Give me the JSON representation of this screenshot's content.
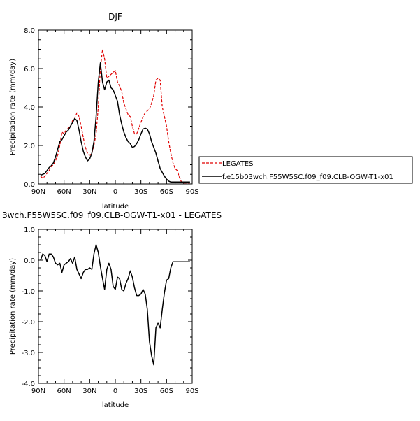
{
  "chart_data": [
    {
      "type": "line",
      "title": "DJF",
      "xlabel": "latitude",
      "ylabel": "Precipitation rate (mm/day)",
      "xlim": [
        90,
        -90
      ],
      "ylim": [
        0,
        8
      ],
      "xticks": [
        90,
        60,
        30,
        0,
        -30,
        -60,
        -90
      ],
      "xtick_labels": [
        "90N",
        "60N",
        "30N",
        "0",
        "30S",
        "60S",
        "90S"
      ],
      "yticks": [
        0,
        2,
        4,
        6,
        8
      ],
      "ytick_labels": [
        "0.0",
        "2.0",
        "4.0",
        "6.0",
        "8.0"
      ],
      "legend_placement": "right",
      "series": [
        {
          "name": "LEGATES",
          "style": "dashed",
          "color": "#e00000",
          "x": [
            87.5,
            85,
            82.5,
            80,
            77.5,
            75,
            72.5,
            70,
            67.5,
            65,
            62.5,
            60,
            57.5,
            55,
            52.5,
            50,
            47.5,
            45,
            42.5,
            40,
            37.5,
            35,
            32.5,
            30,
            27.5,
            25,
            22.5,
            20,
            17.5,
            15,
            12.5,
            10,
            7.5,
            5,
            2.5,
            0,
            -2.5,
            -5,
            -7.5,
            -10,
            -12.5,
            -15,
            -17.5,
            -20,
            -22.5,
            -25,
            -27.5,
            -30,
            -32.5,
            -35,
            -37.5,
            -40,
            -42.5,
            -45,
            -47.5,
            -50,
            -52.5,
            -55,
            -57.5,
            -60,
            -62.5,
            -65,
            -67.5,
            -70,
            -72.5,
            -75,
            -77.5,
            -80,
            -82.5,
            -85,
            -87.5
          ],
          "values": [
            0.4,
            0.3,
            0.4,
            0.55,
            0.7,
            0.9,
            1.0,
            1.2,
            1.5,
            2.0,
            2.7,
            2.6,
            2.8,
            2.9,
            3.0,
            3.3,
            3.4,
            3.7,
            3.5,
            3.0,
            2.4,
            1.9,
            1.6,
            1.5,
            1.6,
            2.0,
            2.6,
            4.0,
            6.0,
            7.0,
            6.5,
            5.5,
            5.6,
            5.7,
            5.8,
            5.9,
            5.3,
            5.1,
            4.8,
            4.2,
            3.9,
            3.6,
            3.5,
            3.0,
            2.6,
            2.6,
            2.9,
            3.2,
            3.5,
            3.7,
            3.8,
            3.9,
            4.2,
            4.6,
            5.4,
            5.5,
            5.4,
            4.0,
            3.5,
            3.0,
            2.2,
            1.6,
            1.1,
            0.8,
            0.7,
            0.35,
            0.1,
            0.05,
            0.05,
            0.05,
            0.05
          ]
        },
        {
          "name": "f.e15b03wch.F55W5SC.f09_f09.CLB-OGW-T1-x01",
          "style": "solid",
          "color": "#000000",
          "x": [
            87.5,
            85,
            82.5,
            80,
            77.5,
            75,
            72.5,
            70,
            67.5,
            65,
            62.5,
            60,
            57.5,
            55,
            52.5,
            50,
            47.5,
            45,
            42.5,
            40,
            37.5,
            35,
            32.5,
            30,
            27.5,
            25,
            22.5,
            20,
            17.5,
            15,
            12.5,
            10,
            7.5,
            5,
            2.5,
            0,
            -2.5,
            -5,
            -7.5,
            -10,
            -12.5,
            -15,
            -17.5,
            -20,
            -22.5,
            -25,
            -27.5,
            -30,
            -32.5,
            -35,
            -37.5,
            -40,
            -42.5,
            -45,
            -47.5,
            -50,
            -52.5,
            -55,
            -57.5,
            -60,
            -62.5,
            -65,
            -67.5,
            -70,
            -72.5,
            -75,
            -77.5,
            -80,
            -82.5,
            -85,
            -87.5
          ],
          "values": [
            0.45,
            0.5,
            0.55,
            0.7,
            0.85,
            0.95,
            1.1,
            1.4,
            1.8,
            2.2,
            2.3,
            2.5,
            2.7,
            2.8,
            3.0,
            3.2,
            3.4,
            3.3,
            2.8,
            2.2,
            1.7,
            1.4,
            1.2,
            1.3,
            1.6,
            2.2,
            3.5,
            5.3,
            6.3,
            5.3,
            4.9,
            5.3,
            5.4,
            5.0,
            4.9,
            4.6,
            4.3,
            3.6,
            3.1,
            2.7,
            2.4,
            2.2,
            2.1,
            1.9,
            1.95,
            2.1,
            2.3,
            2.6,
            2.85,
            2.9,
            2.85,
            2.6,
            2.2,
            1.9,
            1.6,
            1.2,
            0.8,
            0.6,
            0.4,
            0.25,
            0.15,
            0.1,
            0.1,
            0.1,
            0.1,
            0.1,
            0.1,
            0.1,
            0.1,
            0.1,
            0.1
          ]
        }
      ]
    },
    {
      "type": "line",
      "title": "3wch.F55W5SC.f09_f09.CLB-OGW-T1-x01 - LEGATES",
      "xlabel": "latitude",
      "ylabel": "Precipitation rate (mm/day)",
      "xlim": [
        90,
        -90
      ],
      "ylim": [
        -4,
        1
      ],
      "xticks": [
        90,
        60,
        30,
        0,
        -30,
        -60,
        -90
      ],
      "xtick_labels": [
        "90N",
        "60N",
        "30N",
        "0",
        "30S",
        "60S",
        "90S"
      ],
      "yticks": [
        -4,
        -3,
        -2,
        -1,
        0,
        1
      ],
      "ytick_labels": [
        "-4.0",
        "-3.0",
        "-2.0",
        "-1.0",
        "0.0",
        "1.0"
      ],
      "series": [
        {
          "style": "solid",
          "color": "#000000",
          "x": [
            87.5,
            85,
            82.5,
            80,
            77.5,
            75,
            72.5,
            70,
            67.5,
            65,
            62.5,
            60,
            57.5,
            55,
            52.5,
            50,
            47.5,
            45,
            42.5,
            40,
            37.5,
            35,
            32.5,
            30,
            27.5,
            25,
            22.5,
            20,
            17.5,
            15,
            12.5,
            10,
            7.5,
            5,
            2.5,
            0,
            -2.5,
            -5,
            -7.5,
            -10,
            -12.5,
            -15,
            -17.5,
            -20,
            -22.5,
            -25,
            -27.5,
            -30,
            -32.5,
            -35,
            -37.5,
            -40,
            -42.5,
            -45,
            -47.5,
            -50,
            -52.5,
            -55,
            -57.5,
            -60,
            -62.5,
            -65,
            -67.5,
            -70,
            -72.5,
            -75,
            -77.5,
            -80,
            -82.5,
            -85,
            -87.5
          ],
          "values": [
            0.0,
            0.2,
            0.15,
            -0.05,
            0.2,
            0.2,
            0.1,
            -0.1,
            -0.15,
            -0.1,
            -0.4,
            -0.15,
            -0.1,
            -0.05,
            0.05,
            -0.1,
            0.1,
            -0.3,
            -0.45,
            -0.6,
            -0.4,
            -0.3,
            -0.3,
            -0.25,
            -0.3,
            0.2,
            0.5,
            0.25,
            -0.2,
            -0.6,
            -0.95,
            -0.3,
            -0.1,
            -0.3,
            -0.85,
            -0.95,
            -0.55,
            -0.6,
            -0.95,
            -1.0,
            -0.75,
            -0.6,
            -0.35,
            -0.55,
            -0.9,
            -1.15,
            -1.15,
            -1.1,
            -0.95,
            -1.1,
            -1.6,
            -2.65,
            -3.1,
            -3.4,
            -2.2,
            -2.05,
            -2.2,
            -1.6,
            -1.05,
            -0.65,
            -0.6,
            -0.25,
            -0.05,
            -0.05,
            -0.05,
            -0.05,
            -0.05,
            -0.05,
            -0.05,
            -0.05,
            -0.05
          ]
        }
      ]
    }
  ]
}
